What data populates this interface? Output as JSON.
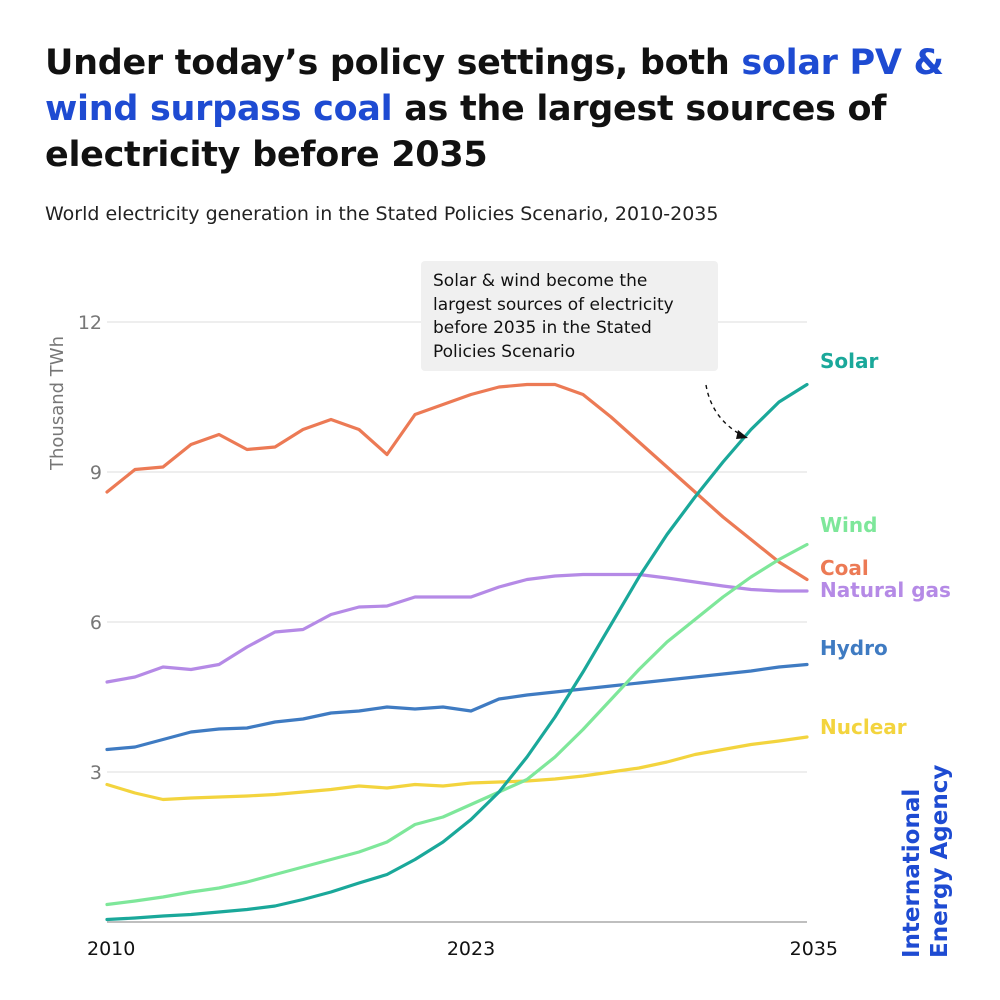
{
  "title": {
    "part1": "Under today’s policy settings, both ",
    "highlight": "solar PV & wind surpass coal",
    "part2": " as the largest sources of electricity before 2035"
  },
  "subtitle": "World electricity generation in the Stated Policies Scenario, 2010-2035",
  "annotation": "Solar & wind become the largest sources of electricity before 2035 in the Stated Policies Scenario",
  "brand": {
    "line1": "International",
    "line2": "Energy Agency"
  },
  "colors": {
    "accent": "#1e4bd2",
    "Solar": "#1aa89a",
    "Wind": "#7ee79a",
    "Coal": "#ec7a55",
    "Natural gas": "#b58ae6",
    "Hydro": "#3f7bc2",
    "Nuclear": "#f3d43e"
  },
  "chart_data": {
    "type": "line",
    "title": "World electricity generation in the Stated Policies Scenario, 2010-2035",
    "xlabel": "",
    "ylabel": "Thousand TWh",
    "xlim": [
      2010,
      2035
    ],
    "ylim": [
      0,
      12
    ],
    "yticks": [
      3,
      6,
      9,
      12
    ],
    "xticks": [
      "2010",
      "2023",
      "2035"
    ],
    "grid": true,
    "x": [
      2010,
      2011,
      2012,
      2013,
      2014,
      2015,
      2016,
      2017,
      2018,
      2019,
      2020,
      2021,
      2022,
      2023,
      2024,
      2025,
      2026,
      2027,
      2028,
      2029,
      2030,
      2031,
      2032,
      2033,
      2034,
      2035
    ],
    "series": [
      {
        "name": "Coal",
        "values": [
          8.6,
          9.05,
          9.1,
          9.55,
          9.75,
          9.45,
          9.5,
          9.85,
          10.05,
          9.85,
          9.35,
          10.15,
          10.35,
          10.55,
          10.7,
          10.75,
          10.75,
          10.55,
          10.1,
          9.6,
          9.1,
          8.6,
          8.1,
          7.65,
          7.2,
          6.85
        ]
      },
      {
        "name": "Natural gas",
        "values": [
          4.8,
          4.9,
          5.1,
          5.05,
          5.15,
          5.5,
          5.8,
          5.85,
          6.15,
          6.3,
          6.32,
          6.5,
          6.5,
          6.5,
          6.7,
          6.85,
          6.92,
          6.95,
          6.95,
          6.95,
          6.88,
          6.8,
          6.72,
          6.65,
          6.62,
          6.62
        ]
      },
      {
        "name": "Hydro",
        "values": [
          3.45,
          3.5,
          3.65,
          3.8,
          3.86,
          3.88,
          4.0,
          4.06,
          4.18,
          4.22,
          4.3,
          4.26,
          4.3,
          4.22,
          4.46,
          4.54,
          4.6,
          4.66,
          4.72,
          4.78,
          4.84,
          4.9,
          4.96,
          5.02,
          5.1,
          5.15
        ]
      },
      {
        "name": "Nuclear",
        "values": [
          2.75,
          2.58,
          2.45,
          2.48,
          2.5,
          2.52,
          2.55,
          2.6,
          2.65,
          2.72,
          2.68,
          2.75,
          2.72,
          2.78,
          2.8,
          2.82,
          2.86,
          2.92,
          3.0,
          3.08,
          3.2,
          3.35,
          3.45,
          3.55,
          3.62,
          3.7
        ]
      },
      {
        "name": "Wind",
        "values": [
          0.35,
          0.42,
          0.5,
          0.6,
          0.68,
          0.8,
          0.95,
          1.1,
          1.25,
          1.4,
          1.6,
          1.95,
          2.1,
          2.35,
          2.6,
          2.85,
          3.3,
          3.85,
          4.45,
          5.05,
          5.6,
          6.05,
          6.5,
          6.9,
          7.25,
          7.55
        ]
      },
      {
        "name": "Solar",
        "values": [
          0.05,
          0.08,
          0.12,
          0.15,
          0.2,
          0.25,
          0.32,
          0.45,
          0.6,
          0.78,
          0.95,
          1.25,
          1.6,
          2.05,
          2.6,
          3.3,
          4.1,
          5.0,
          5.95,
          6.9,
          7.75,
          8.5,
          9.2,
          9.85,
          10.4,
          10.75
        ]
      }
    ]
  }
}
